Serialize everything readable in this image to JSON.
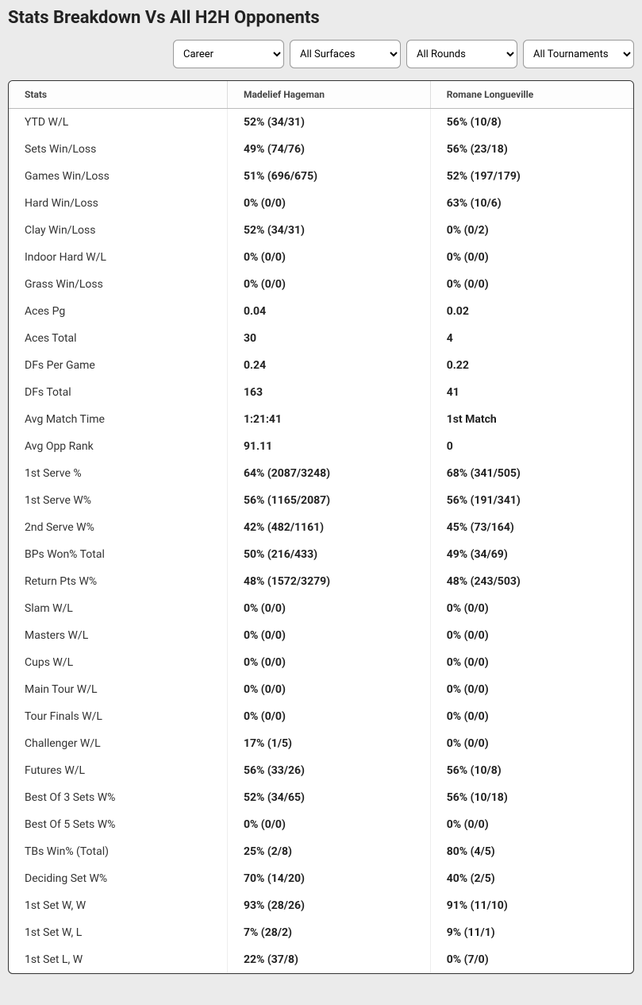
{
  "title": "Stats Breakdown Vs All H2H Opponents",
  "filters": {
    "period": "Career",
    "surface": "All Surfaces",
    "round": "All Rounds",
    "tournament": "All Tournaments"
  },
  "columns": {
    "stats": "Stats",
    "player1": "Madelief Hageman",
    "player2": "Romane Longueville"
  },
  "rows": [
    {
      "label": "YTD W/L",
      "p1": "52% (34/31)",
      "p2": "56% (10/8)"
    },
    {
      "label": "Sets Win/Loss",
      "p1": "49% (74/76)",
      "p2": "56% (23/18)"
    },
    {
      "label": "Games Win/Loss",
      "p1": "51% (696/675)",
      "p2": "52% (197/179)"
    },
    {
      "label": "Hard Win/Loss",
      "p1": "0% (0/0)",
      "p2": "63% (10/6)"
    },
    {
      "label": "Clay Win/Loss",
      "p1": "52% (34/31)",
      "p2": "0% (0/2)"
    },
    {
      "label": "Indoor Hard W/L",
      "p1": "0% (0/0)",
      "p2": "0% (0/0)"
    },
    {
      "label": "Grass Win/Loss",
      "p1": "0% (0/0)",
      "p2": "0% (0/0)"
    },
    {
      "label": "Aces Pg",
      "p1": "0.04",
      "p2": "0.02"
    },
    {
      "label": "Aces Total",
      "p1": "30",
      "p2": "4"
    },
    {
      "label": "DFs Per Game",
      "p1": "0.24",
      "p2": "0.22"
    },
    {
      "label": "DFs Total",
      "p1": "163",
      "p2": "41"
    },
    {
      "label": "Avg Match Time",
      "p1": "1:21:41",
      "p2": "1st Match"
    },
    {
      "label": "Avg Opp Rank",
      "p1": "91.11",
      "p2": "0"
    },
    {
      "label": "1st Serve %",
      "p1": "64% (2087/3248)",
      "p2": "68% (341/505)"
    },
    {
      "label": "1st Serve W%",
      "p1": "56% (1165/2087)",
      "p2": "56% (191/341)"
    },
    {
      "label": "2nd Serve W%",
      "p1": "42% (482/1161)",
      "p2": "45% (73/164)"
    },
    {
      "label": "BPs Won% Total",
      "p1": "50% (216/433)",
      "p2": "49% (34/69)"
    },
    {
      "label": "Return Pts W%",
      "p1": "48% (1572/3279)",
      "p2": "48% (243/503)"
    },
    {
      "label": "Slam W/L",
      "p1": "0% (0/0)",
      "p2": "0% (0/0)"
    },
    {
      "label": "Masters W/L",
      "p1": "0% (0/0)",
      "p2": "0% (0/0)"
    },
    {
      "label": "Cups W/L",
      "p1": "0% (0/0)",
      "p2": "0% (0/0)"
    },
    {
      "label": "Main Tour W/L",
      "p1": "0% (0/0)",
      "p2": "0% (0/0)"
    },
    {
      "label": "Tour Finals W/L",
      "p1": "0% (0/0)",
      "p2": "0% (0/0)"
    },
    {
      "label": "Challenger W/L",
      "p1": "17% (1/5)",
      "p2": "0% (0/0)"
    },
    {
      "label": "Futures W/L",
      "p1": "56% (33/26)",
      "p2": "56% (10/8)"
    },
    {
      "label": "Best Of 3 Sets W%",
      "p1": "52% (34/65)",
      "p2": "56% (10/18)"
    },
    {
      "label": "Best Of 5 Sets W%",
      "p1": "0% (0/0)",
      "p2": "0% (0/0)"
    },
    {
      "label": "TBs Win% (Total)",
      "p1": "25% (2/8)",
      "p2": "80% (4/5)"
    },
    {
      "label": "Deciding Set W%",
      "p1": "70% (14/20)",
      "p2": "40% (2/5)"
    },
    {
      "label": "1st Set W, W",
      "p1": "93% (28/26)",
      "p2": "91% (11/10)"
    },
    {
      "label": "1st Set W, L",
      "p1": "7% (28/2)",
      "p2": "9% (11/1)"
    },
    {
      "label": "1st Set L, W",
      "p1": "22% (37/8)",
      "p2": "0% (7/0)"
    }
  ]
}
